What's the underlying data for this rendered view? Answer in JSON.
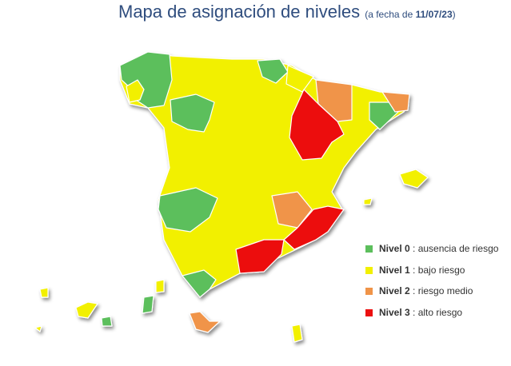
{
  "header": {
    "title": "Mapa de asignación de niveles",
    "subtitle": {
      "prefix": "(a fecha de ",
      "date": "11/07/23",
      "suffix": ")"
    }
  },
  "legend": [
    {
      "level": "Nivel 0",
      "description": " : ausencia de riesgo",
      "color": "#5cbf5c"
    },
    {
      "level": "Nivel 1",
      "description": " : bajo riesgo",
      "color": "#f2f000"
    },
    {
      "level": "Nivel 2",
      "description": " : riesgo medio",
      "color": "#f09448"
    },
    {
      "level": "Nivel 3",
      "description": " : alto riesgo",
      "color": "#ec1010"
    }
  ]
}
